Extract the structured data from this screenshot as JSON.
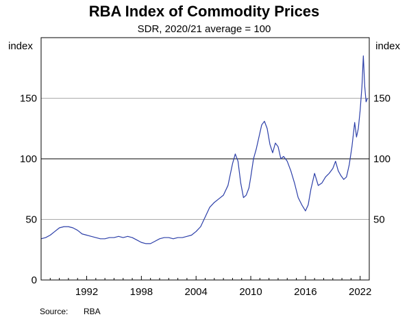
{
  "chart_data": {
    "type": "line",
    "title": "RBA Index of Commodity Prices",
    "subtitle": "SDR, 2020/21 average = 100",
    "unit_left": "index",
    "unit_right": "index",
    "source_label": "Source:",
    "source_value": "RBA",
    "xlim": [
      1987.0,
      2023.0
    ],
    "ylim": [
      0,
      200
    ],
    "y_ticks": [
      0,
      50,
      100,
      150
    ],
    "y_tick_labels": [
      "0",
      "50",
      "100",
      "150"
    ],
    "right_y_ticks": [
      50,
      100,
      150
    ],
    "right_y_tick_labels": [
      "50",
      "100",
      "150"
    ],
    "x_ticks": [
      1992,
      1998,
      2004,
      2010,
      2016,
      2022
    ],
    "x_tick_labels": [
      "1992",
      "1998",
      "2004",
      "2010",
      "2016",
      "2022"
    ],
    "grid": true,
    "reference_line": 100,
    "series": [
      {
        "color": "#2b3ea8",
        "points": [
          [
            1987.0,
            34
          ],
          [
            1987.5,
            35
          ],
          [
            1988.0,
            37
          ],
          [
            1988.5,
            40
          ],
          [
            1989.0,
            43
          ],
          [
            1989.5,
            44
          ],
          [
            1990.0,
            44
          ],
          [
            1990.5,
            43
          ],
          [
            1991.0,
            41
          ],
          [
            1991.5,
            38
          ],
          [
            1992.0,
            37
          ],
          [
            1992.5,
            36
          ],
          [
            1993.0,
            35
          ],
          [
            1993.5,
            34
          ],
          [
            1994.0,
            34
          ],
          [
            1994.5,
            35
          ],
          [
            1995.0,
            35
          ],
          [
            1995.5,
            36
          ],
          [
            1996.0,
            35
          ],
          [
            1996.5,
            36
          ],
          [
            1997.0,
            35
          ],
          [
            1997.5,
            33
          ],
          [
            1998.0,
            31
          ],
          [
            1998.5,
            30
          ],
          [
            1999.0,
            30
          ],
          [
            1999.5,
            32
          ],
          [
            2000.0,
            34
          ],
          [
            2000.5,
            35
          ],
          [
            2001.0,
            35
          ],
          [
            2001.5,
            34
          ],
          [
            2002.0,
            35
          ],
          [
            2002.5,
            35
          ],
          [
            2003.0,
            36
          ],
          [
            2003.5,
            37
          ],
          [
            2004.0,
            40
          ],
          [
            2004.5,
            44
          ],
          [
            2005.0,
            52
          ],
          [
            2005.5,
            60
          ],
          [
            2006.0,
            64
          ],
          [
            2006.5,
            67
          ],
          [
            2007.0,
            70
          ],
          [
            2007.5,
            78
          ],
          [
            2008.0,
            96
          ],
          [
            2008.3,
            104
          ],
          [
            2008.6,
            98
          ],
          [
            2008.9,
            80
          ],
          [
            2009.2,
            68
          ],
          [
            2009.5,
            70
          ],
          [
            2009.8,
            76
          ],
          [
            2010.0,
            85
          ],
          [
            2010.3,
            100
          ],
          [
            2010.6,
            108
          ],
          [
            2010.9,
            118
          ],
          [
            2011.2,
            128
          ],
          [
            2011.5,
            131
          ],
          [
            2011.8,
            125
          ],
          [
            2012.1,
            112
          ],
          [
            2012.4,
            105
          ],
          [
            2012.7,
            113
          ],
          [
            2013.0,
            110
          ],
          [
            2013.3,
            100
          ],
          [
            2013.6,
            102
          ],
          [
            2014.0,
            98
          ],
          [
            2014.4,
            90
          ],
          [
            2014.8,
            80
          ],
          [
            2015.2,
            68
          ],
          [
            2015.6,
            62
          ],
          [
            2016.0,
            57
          ],
          [
            2016.3,
            62
          ],
          [
            2016.6,
            75
          ],
          [
            2017.0,
            88
          ],
          [
            2017.4,
            78
          ],
          [
            2017.8,
            80
          ],
          [
            2018.2,
            85
          ],
          [
            2018.6,
            88
          ],
          [
            2019.0,
            92
          ],
          [
            2019.3,
            98
          ],
          [
            2019.6,
            90
          ],
          [
            2019.9,
            86
          ],
          [
            2020.2,
            83
          ],
          [
            2020.5,
            85
          ],
          [
            2020.8,
            95
          ],
          [
            2021.1,
            110
          ],
          [
            2021.4,
            130
          ],
          [
            2021.6,
            118
          ],
          [
            2021.8,
            125
          ],
          [
            2022.0,
            140
          ],
          [
            2022.2,
            160
          ],
          [
            2022.35,
            185
          ],
          [
            2022.5,
            160
          ],
          [
            2022.65,
            147
          ],
          [
            2022.8,
            150
          ]
        ]
      }
    ]
  }
}
